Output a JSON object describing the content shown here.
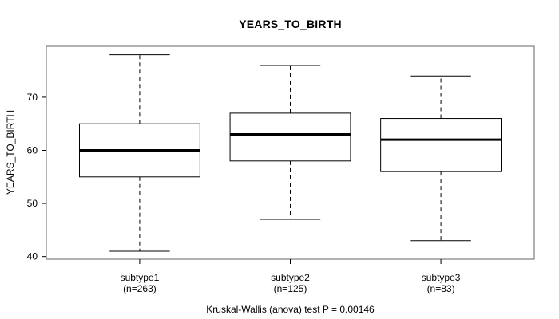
{
  "chart_data": {
    "type": "boxplot",
    "title": "YEARS_TO_BIRTH",
    "ylabel": "YEARS_TO_BIRTH",
    "caption": "Kruskal-Wallis (anova) test P = 0.00146",
    "yticks": [
      40,
      50,
      60,
      70
    ],
    "ylim": [
      39.5,
      79.6
    ],
    "grid": false,
    "legend": "none",
    "series": [
      {
        "name": "subtype1",
        "n_label": "(n=263)",
        "low": 41,
        "q1": 55,
        "median": 60,
        "q3": 65,
        "high": 78
      },
      {
        "name": "subtype2",
        "n_label": "(n=125)",
        "low": 47,
        "q1": 58,
        "median": 63,
        "q3": 67,
        "high": 76
      },
      {
        "name": "subtype3",
        "n_label": "(n=83)",
        "low": 43,
        "q1": 56,
        "median": 62,
        "q3": 66,
        "high": 74
      }
    ],
    "colors": {
      "line": "#000000",
      "frame": "#666666",
      "box_fill": "#ffffff",
      "background": "#ffffff"
    }
  }
}
